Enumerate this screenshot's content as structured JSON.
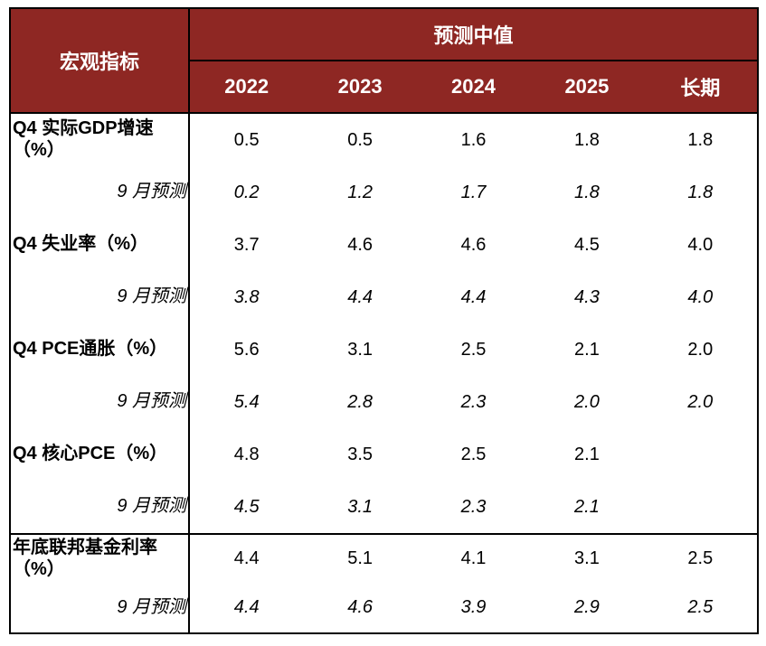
{
  "colors": {
    "header_bg": "#8E2723",
    "header_text": "#FFFFFF",
    "border": "#000000",
    "body_text": "#000000"
  },
  "table": {
    "header": {
      "indicator_col_label": "宏观指标",
      "group_label": "预测中值",
      "years": [
        "2022",
        "2023",
        "2024",
        "2025",
        "长期"
      ]
    },
    "rows": [
      {
        "label": "Q4 实际GDP增速\n（%）",
        "values": [
          "0.5",
          "0.5",
          "1.6",
          "1.8",
          "1.8"
        ]
      },
      {
        "label": "9 月预测",
        "values": [
          "0.2",
          "1.2",
          "1.7",
          "1.8",
          "1.8"
        ]
      },
      {
        "label": "Q4 失业率（%）",
        "values": [
          "3.7",
          "4.6",
          "4.6",
          "4.5",
          "4.0"
        ]
      },
      {
        "label": "9 月预测",
        "values": [
          "3.8",
          "4.4",
          "4.4",
          "4.3",
          "4.0"
        ]
      },
      {
        "label": "Q4 PCE通胀（%）",
        "values": [
          "5.6",
          "3.1",
          "2.5",
          "2.1",
          "2.0"
        ]
      },
      {
        "label": "9 月预测",
        "values": [
          "5.4",
          "2.8",
          "2.3",
          "2.0",
          "2.0"
        ]
      },
      {
        "label": "Q4 核心PCE（%）",
        "values": [
          "4.8",
          "3.5",
          "2.5",
          "2.1",
          ""
        ]
      },
      {
        "label": "9 月预测",
        "values": [
          "4.5",
          "3.1",
          "2.3",
          "2.1",
          ""
        ]
      },
      {
        "label": "年底联邦基金利率\n（%）",
        "values": [
          "4.4",
          "5.1",
          "4.1",
          "3.1",
          "2.5"
        ]
      },
      {
        "label": "9 月预测",
        "values": [
          "4.4",
          "4.6",
          "3.9",
          "2.9",
          "2.5"
        ]
      }
    ]
  },
  "chart_data": {
    "type": "table",
    "title": "预测中值",
    "corner_header": "宏观指标",
    "columns": [
      "2022",
      "2023",
      "2024",
      "2025",
      "长期"
    ],
    "rows": [
      {
        "indicator": "Q4 实际GDP增速（%）",
        "current": [
          0.5,
          0.5,
          1.6,
          1.8,
          1.8
        ],
        "september_forecast": [
          0.2,
          1.2,
          1.7,
          1.8,
          1.8
        ]
      },
      {
        "indicator": "Q4 失业率（%）",
        "current": [
          3.7,
          4.6,
          4.6,
          4.5,
          4.0
        ],
        "september_forecast": [
          3.8,
          4.4,
          4.4,
          4.3,
          4.0
        ]
      },
      {
        "indicator": "Q4 PCE通胀（%）",
        "current": [
          5.6,
          3.1,
          2.5,
          2.1,
          2.0
        ],
        "september_forecast": [
          5.4,
          2.8,
          2.3,
          2.0,
          2.0
        ]
      },
      {
        "indicator": "Q4 核心PCE（%）",
        "current": [
          4.8,
          3.5,
          2.5,
          2.1,
          null
        ],
        "september_forecast": [
          4.5,
          3.1,
          2.3,
          2.1,
          null
        ]
      },
      {
        "indicator": "年底联邦基金利率（%）",
        "current": [
          4.4,
          5.1,
          4.1,
          3.1,
          2.5
        ],
        "september_forecast": [
          4.4,
          4.6,
          3.9,
          2.9,
          2.5
        ]
      }
    ]
  }
}
